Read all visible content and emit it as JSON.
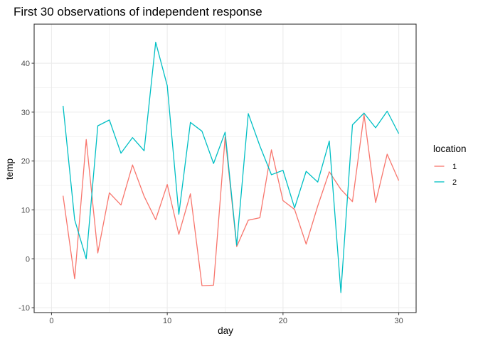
{
  "chart_data": {
    "type": "line",
    "title": "First 30 observations of independent response",
    "xlabel": "day",
    "ylabel": "temp",
    "xlim": [
      -1.5,
      31.5
    ],
    "ylim": [
      -11,
      48
    ],
    "x_ticks": [
      0,
      10,
      20,
      30
    ],
    "y_ticks": [
      -10,
      0,
      10,
      20,
      30,
      40
    ],
    "grid": true,
    "legend_placement": "right",
    "legend_title": "location",
    "x": [
      1,
      2,
      3,
      4,
      5,
      6,
      7,
      8,
      9,
      10,
      11,
      12,
      13,
      14,
      15,
      16,
      17,
      18,
      19,
      20,
      21,
      22,
      23,
      24,
      25,
      26,
      27,
      28,
      29,
      30
    ],
    "series": [
      {
        "name": "1",
        "color": "#F8766D",
        "values": [
          12.9,
          -4.1,
          24.4,
          1.2,
          13.5,
          11.0,
          19.2,
          12.8,
          8.0,
          15.2,
          5.0,
          13.3,
          -5.5,
          -5.4,
          24.9,
          2.5,
          7.9,
          8.4,
          22.3,
          11.9,
          10.1,
          3.0,
          10.8,
          17.8,
          14.2,
          11.7,
          29.5,
          11.5,
          21.4,
          16.0
        ]
      },
      {
        "name": "2",
        "color": "#00BFC4",
        "values": [
          31.3,
          8.0,
          0.0,
          27.2,
          28.4,
          21.6,
          24.8,
          22.1,
          44.3,
          35.4,
          9.1,
          27.9,
          26.1,
          19.5,
          25.9,
          2.8,
          29.7,
          23.1,
          17.2,
          18.1,
          10.4,
          17.9,
          15.7,
          24.1,
          -6.9,
          27.4,
          29.8,
          26.8,
          30.2,
          25.6
        ]
      }
    ]
  }
}
